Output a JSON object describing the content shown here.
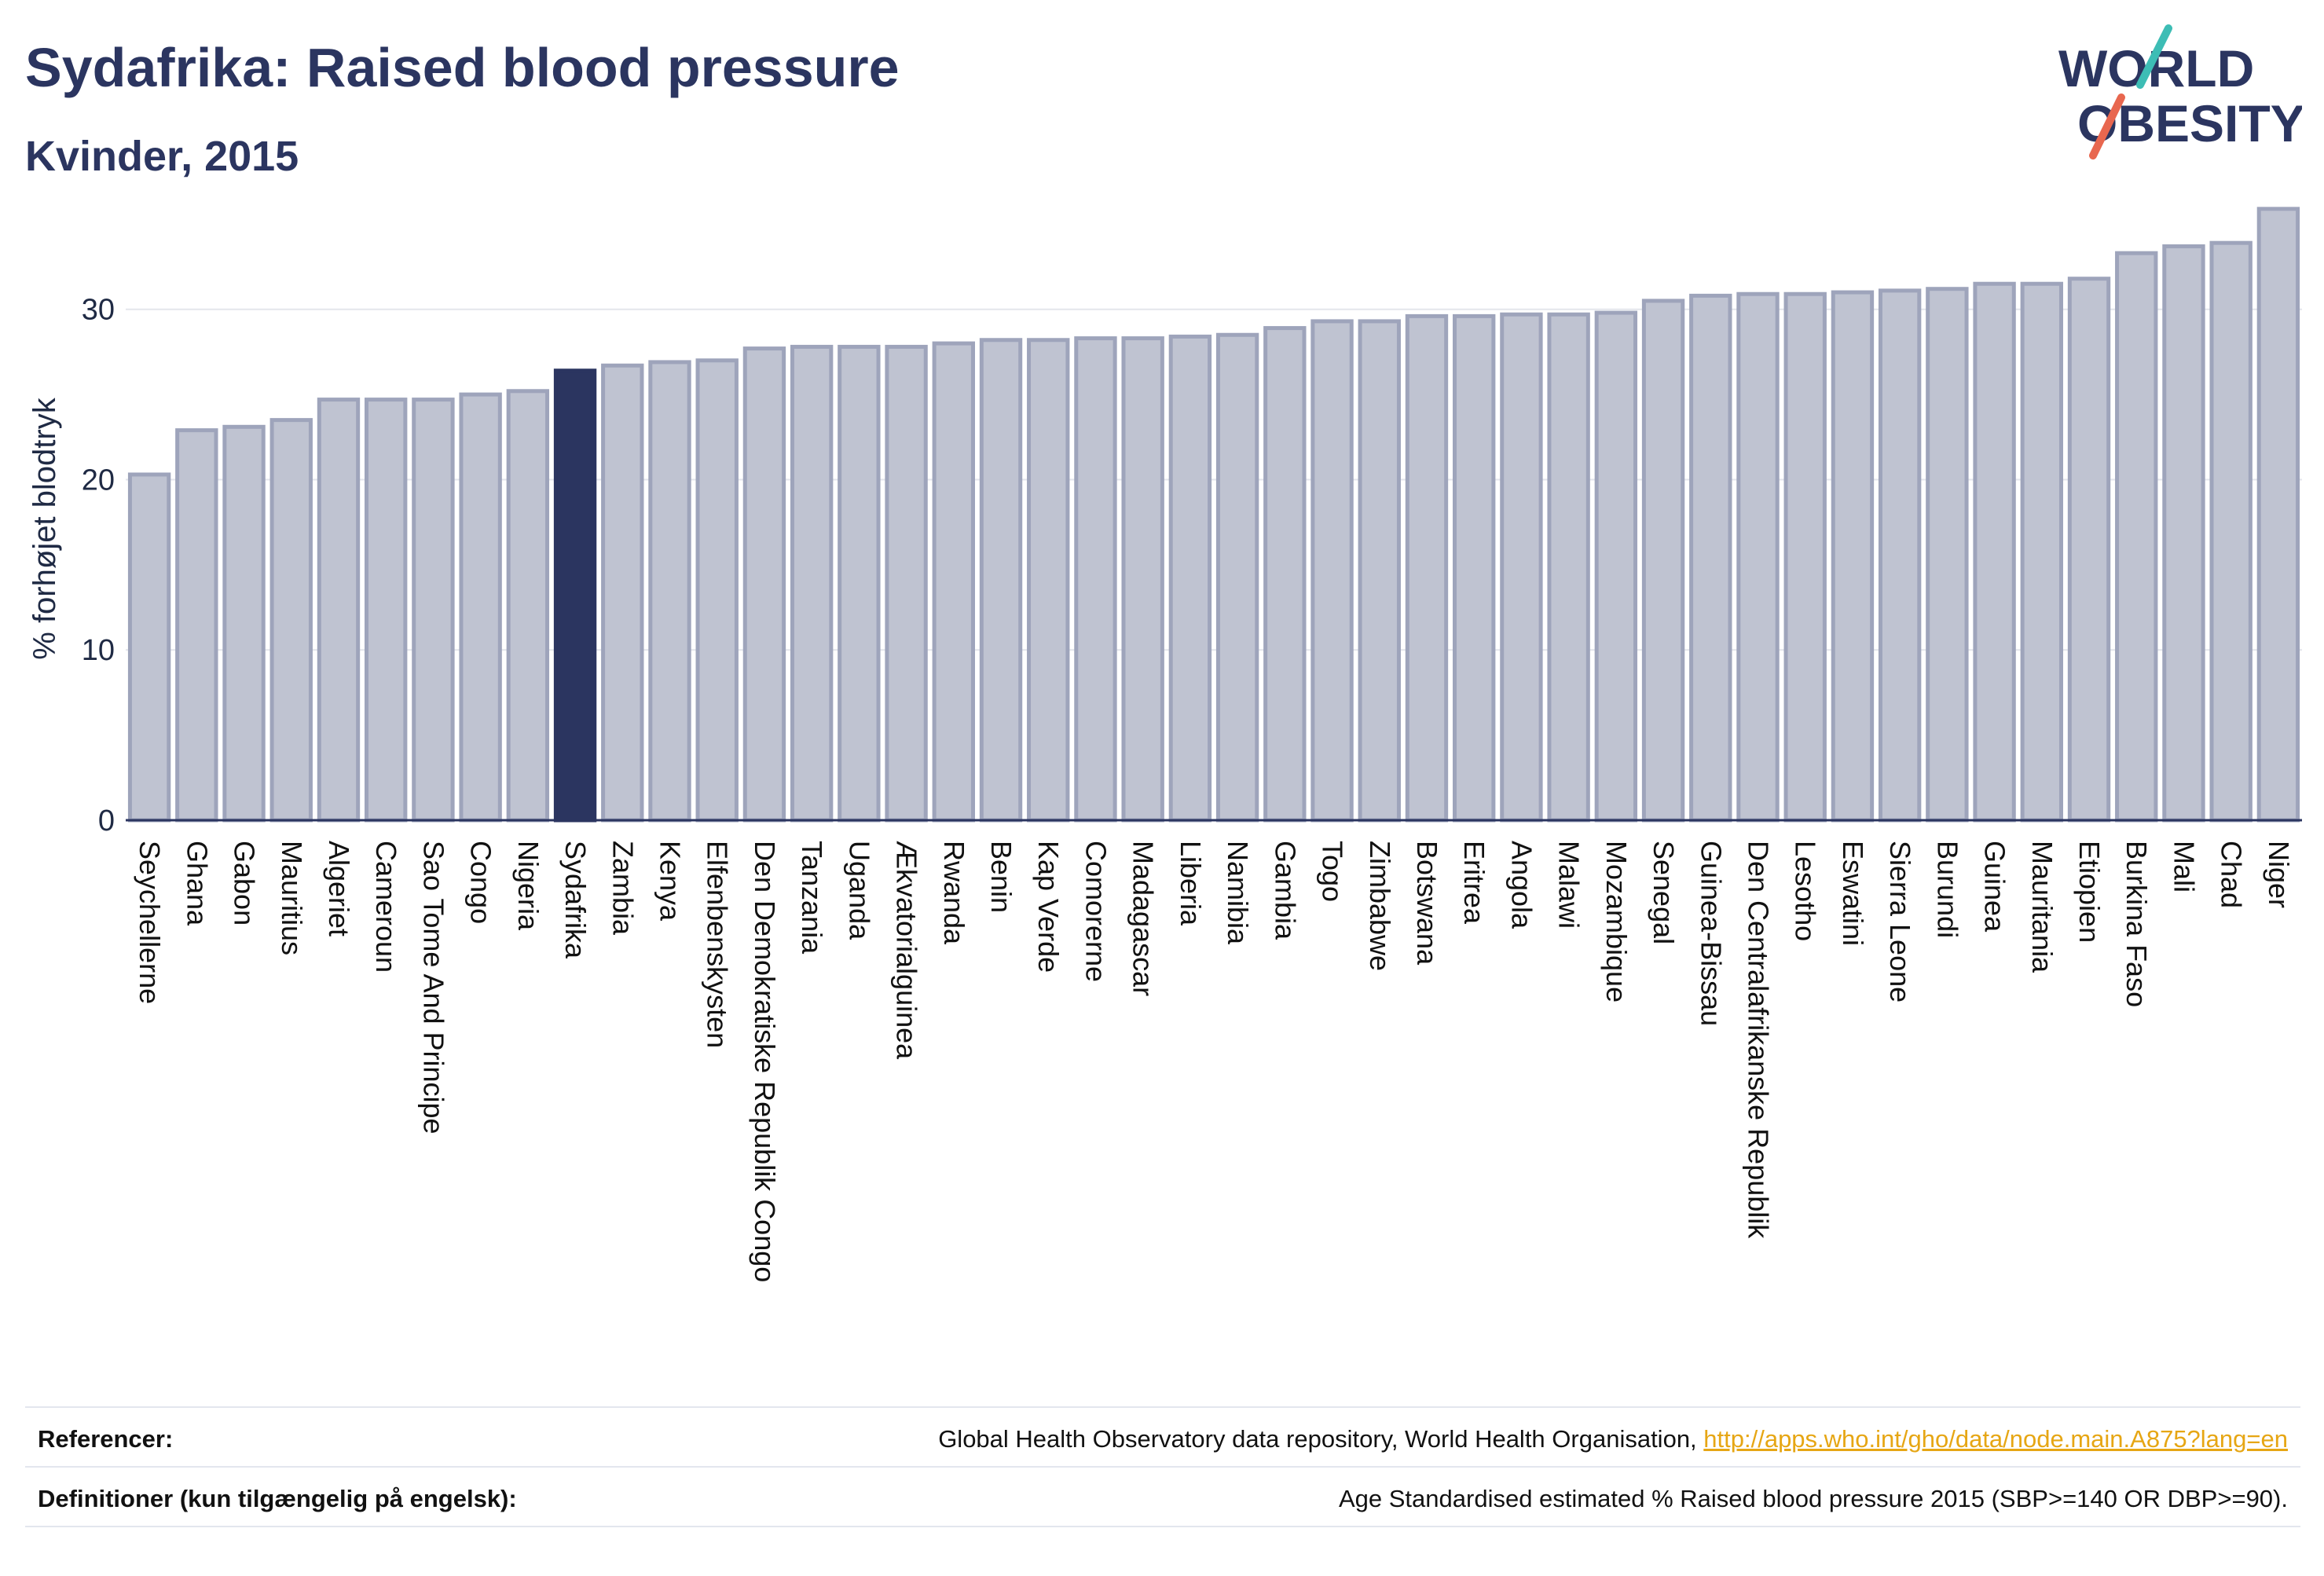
{
  "header": {
    "title": "Sydafrika: Raised blood pressure",
    "subtitle": "Kvinder, 2015"
  },
  "logo": {
    "line1": "WORLD",
    "line2": "OBESITY",
    "accent_colors": [
      "#3dbdb5",
      "#e8674f"
    ]
  },
  "colors": {
    "bar": "#bfc3d1",
    "bar_stroke": "#9ea4bb",
    "highlight": "#2b3560",
    "text": "#2b3560",
    "link": "#e6a614"
  },
  "chart_data": {
    "type": "bar",
    "ylabel": "% forhøjet blodtryk",
    "ylim": [
      0,
      37
    ],
    "yticks": [
      0,
      10,
      20,
      30
    ],
    "grid": true,
    "highlight": "Sydafrika",
    "categories": [
      "Seychellerne",
      "Ghana",
      "Gabon",
      "Mauritius",
      "Algeriet",
      "Cameroun",
      "Sao Tome And Principe",
      "Congo",
      "Nigeria",
      "Sydafrika",
      "Zambia",
      "Kenya",
      "Elfenbenskysten",
      "Den Demokratiske Republik Congo",
      "Tanzania",
      "Uganda",
      "Ækvatorialguinea",
      "Rwanda",
      "Benin",
      "Kap Verde",
      "Comorerne",
      "Madagascar",
      "Liberia",
      "Namibia",
      "Gambia",
      "Togo",
      "Zimbabwe",
      "Botswana",
      "Eritrea",
      "Angola",
      "Malawi",
      "Mozambique",
      "Senegal",
      "Guinea-Bissau",
      "Den Centralafrikanske Republik",
      "Lesotho",
      "Eswatini",
      "Sierra Leone",
      "Burundi",
      "Guinea",
      "Mauritania",
      "Etiopien",
      "Burkina Faso",
      "Mali",
      "Chad",
      "Niger"
    ],
    "values": [
      20.3,
      22.9,
      23.1,
      23.5,
      24.7,
      24.7,
      24.7,
      25.0,
      25.2,
      26.4,
      26.7,
      26.9,
      27.0,
      27.7,
      27.8,
      27.8,
      27.8,
      28.0,
      28.2,
      28.2,
      28.3,
      28.3,
      28.4,
      28.5,
      28.9,
      29.3,
      29.3,
      29.6,
      29.6,
      29.7,
      29.7,
      29.8,
      30.5,
      30.8,
      30.9,
      30.9,
      31.0,
      31.1,
      31.2,
      31.5,
      31.5,
      31.8,
      33.3,
      33.7,
      33.9,
      35.9
    ]
  },
  "footer": {
    "references_label": "Referencer:",
    "references_text": "Global Health Observatory data repository, World Health Organisation, ",
    "references_link": "http://apps.who.int/gho/data/node.main.A875?lang=en",
    "definitions_label": "Definitioner (kun tilgængelig på engelsk):",
    "definitions_text": "Age Standardised estimated % Raised blood pressure 2015 (SBP>=140 OR DBP>=90)."
  }
}
